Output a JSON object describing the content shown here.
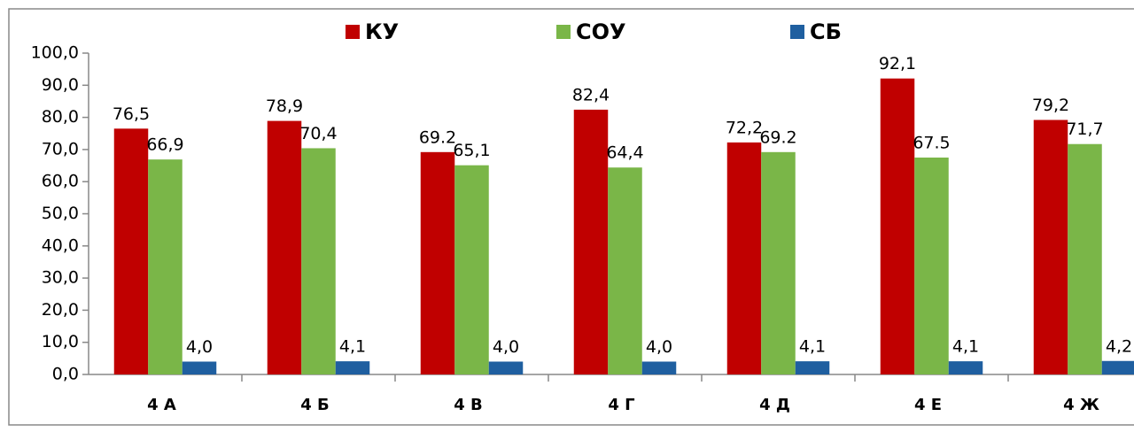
{
  "chart_data": {
    "type": "bar",
    "categories": [
      "4 А",
      "4 Б",
      "4 В",
      "4 Г",
      "4 Д",
      "4 Е",
      "4 Ж"
    ],
    "series": [
      {
        "name": "КУ",
        "color": "#c00000",
        "values": [
          76.5,
          78.9,
          69.2,
          82.4,
          72.2,
          92.1,
          79.2
        ],
        "value_labels": [
          "76,5",
          "78,9",
          "69.2",
          "82,4",
          "72,2",
          "92,1",
          "79,2"
        ]
      },
      {
        "name": "СОУ",
        "color": "#7ab648",
        "values": [
          66.9,
          70.4,
          65.1,
          64.4,
          69.2,
          67.5,
          71.7
        ],
        "value_labels": [
          "66,9",
          "70,4",
          "65,1",
          "64,4",
          "69.2",
          "67.5",
          "71,7"
        ]
      },
      {
        "name": "СБ",
        "color": "#1f5fa0",
        "values": [
          4.0,
          4.1,
          4.0,
          4.0,
          4.1,
          4.1,
          4.2
        ],
        "value_labels": [
          "4,0",
          "4,1",
          "4,0",
          "4,0",
          "4,1",
          "4,1",
          "4,2"
        ]
      }
    ],
    "ylim": [
      0,
      100
    ],
    "yticks": [
      {
        "value": 0,
        "label": "0,0"
      },
      {
        "value": 10,
        "label": "10,0"
      },
      {
        "value": 20,
        "label": "20,0"
      },
      {
        "value": 30,
        "label": "30,0"
      },
      {
        "value": 40,
        "label": "40,0"
      },
      {
        "value": 50,
        "label": "50,0"
      },
      {
        "value": 60,
        "label": "60,0"
      },
      {
        "value": 70,
        "label": "70,0"
      },
      {
        "value": 80,
        "label": "80,0"
      },
      {
        "value": 90,
        "label": "90,0"
      },
      {
        "value": 100,
        "label": "100,0"
      }
    ],
    "legend": "top",
    "grid": false
  }
}
